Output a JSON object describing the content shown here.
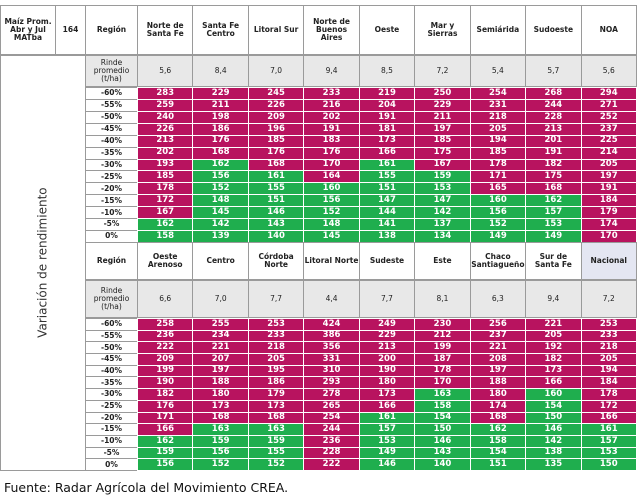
{
  "corner": {
    "label": "Maíz Prom. Abr y Jul MATba",
    "price": 164
  },
  "side_label": "Variación de rendimiento",
  "blocks": [
    {
      "row_header": "Región",
      "yield_label": "Rinde promedio (t/ha)",
      "regions": [
        "Norte de Santa Fe",
        "Santa Fe Centro",
        "Litoral Sur",
        "Norte de Buenos Aires",
        "Oeste",
        "Mar y Sierras",
        "Semiárida",
        "Sudoeste",
        "NOA"
      ],
      "yields": [
        "5,6",
        "8,4",
        "7,0",
        "9,4",
        "8,5",
        "7,2",
        "5,4",
        "5,7",
        "5,6"
      ],
      "rows": [
        {
          "label": "-60%",
          "values": [
            283,
            229,
            245,
            233,
            219,
            250,
            254,
            268,
            294
          ]
        },
        {
          "label": "-55%",
          "values": [
            259,
            211,
            226,
            216,
            204,
            229,
            231,
            244,
            271
          ]
        },
        {
          "label": "-50%",
          "values": [
            240,
            198,
            209,
            202,
            191,
            211,
            218,
            228,
            252
          ]
        },
        {
          "label": "-45%",
          "values": [
            226,
            186,
            196,
            191,
            181,
            197,
            205,
            213,
            237
          ]
        },
        {
          "label": "-40%",
          "values": [
            213,
            176,
            185,
            183,
            173,
            185,
            194,
            201,
            225
          ]
        },
        {
          "label": "-35%",
          "values": [
            202,
            168,
            176,
            176,
            166,
            175,
            185,
            191,
            214
          ]
        },
        {
          "label": "-30%",
          "values": [
            193,
            162,
            168,
            170,
            161,
            167,
            178,
            182,
            205
          ]
        },
        {
          "label": "-25%",
          "values": [
            185,
            156,
            161,
            164,
            155,
            159,
            171,
            175,
            197
          ]
        },
        {
          "label": "-20%",
          "values": [
            178,
            152,
            155,
            160,
            151,
            153,
            165,
            168,
            191
          ]
        },
        {
          "label": "-15%",
          "values": [
            172,
            148,
            151,
            156,
            147,
            147,
            160,
            162,
            184
          ]
        },
        {
          "label": "-10%",
          "values": [
            167,
            145,
            146,
            152,
            144,
            142,
            156,
            157,
            179
          ]
        },
        {
          "label": "-5%",
          "values": [
            162,
            142,
            143,
            148,
            141,
            137,
            152,
            153,
            174
          ]
        },
        {
          "label": "0%",
          "values": [
            158,
            139,
            140,
            145,
            138,
            134,
            149,
            149,
            170
          ]
        }
      ]
    },
    {
      "row_header": "Región",
      "yield_label": "Rinde promedio (t/ha)",
      "regions": [
        "Oeste Arenoso",
        "Centro",
        "Córdoba Norte",
        "Litoral Norte",
        "Sudeste",
        "Este",
        "Chaco Santiagueño",
        "Sur de Santa Fe",
        "Nacional"
      ],
      "yields": [
        "6,6",
        "7,0",
        "7,7",
        "4,4",
        "7,7",
        "8,1",
        "6,3",
        "9,4",
        "7,2"
      ],
      "rows": [
        {
          "label": "-60%",
          "values": [
            258,
            255,
            253,
            424,
            249,
            230,
            256,
            221,
            253
          ]
        },
        {
          "label": "-55%",
          "values": [
            236,
            234,
            233,
            386,
            229,
            212,
            237,
            205,
            233
          ]
        },
        {
          "label": "-50%",
          "values": [
            222,
            221,
            218,
            356,
            213,
            199,
            221,
            192,
            218
          ]
        },
        {
          "label": "-45%",
          "values": [
            209,
            207,
            205,
            331,
            200,
            187,
            208,
            182,
            205
          ]
        },
        {
          "label": "-40%",
          "values": [
            199,
            197,
            195,
            310,
            190,
            178,
            197,
            173,
            194
          ]
        },
        {
          "label": "-35%",
          "values": [
            190,
            188,
            186,
            293,
            180,
            170,
            188,
            166,
            184
          ]
        },
        {
          "label": "-30%",
          "values": [
            182,
            180,
            179,
            278,
            173,
            163,
            180,
            160,
            178
          ]
        },
        {
          "label": "-25%",
          "values": [
            176,
            173,
            173,
            265,
            166,
            158,
            174,
            154,
            172
          ]
        },
        {
          "label": "-20%",
          "values": [
            171,
            168,
            168,
            254,
            161,
            154,
            168,
            150,
            166
          ]
        },
        {
          "label": "-15%",
          "values": [
            166,
            163,
            163,
            244,
            157,
            150,
            162,
            146,
            161
          ]
        },
        {
          "label": "-10%",
          "values": [
            162,
            159,
            159,
            236,
            153,
            146,
            158,
            142,
            157
          ]
        },
        {
          "label": "-5%",
          "values": [
            159,
            156,
            155,
            228,
            149,
            143,
            154,
            138,
            153
          ]
        },
        {
          "label": "0%",
          "values": [
            156,
            152,
            152,
            222,
            146,
            140,
            151,
            135,
            150
          ]
        }
      ]
    }
  ],
  "footer": "Fuente: Radar Agrícola del Movimiento CREA."
}
